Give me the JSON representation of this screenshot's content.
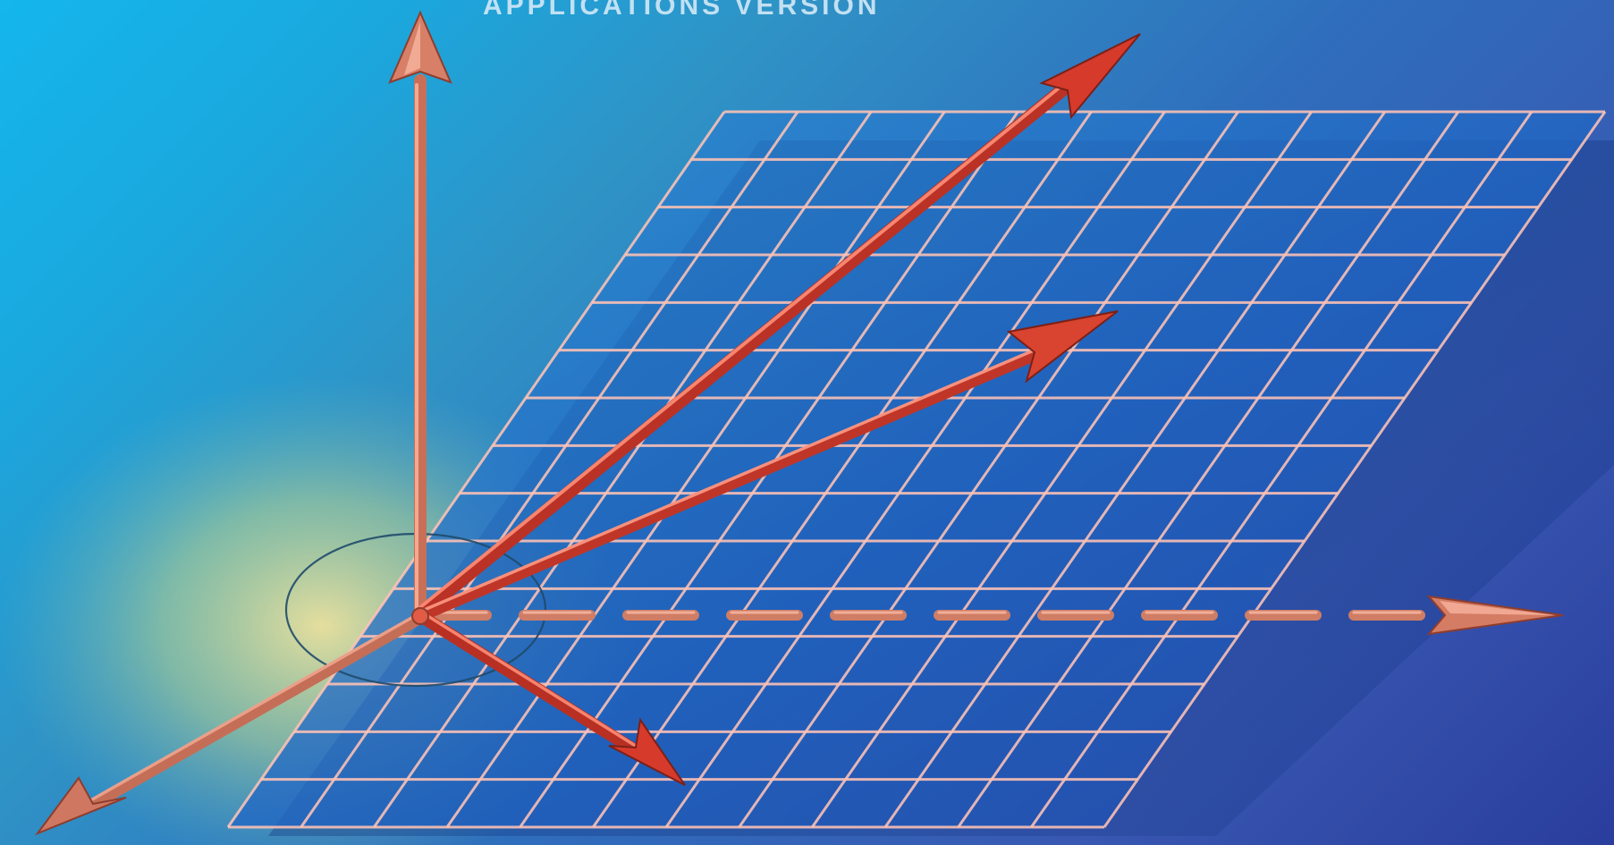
{
  "cover": {
    "title": "APPLICATIONS VERSION"
  },
  "palette": {
    "background_light": "#14b6ec",
    "background_dark": "#2a3d9d",
    "glow": "#e4e59b",
    "grid_line": "#ffc3b5",
    "grid_fill": "#1f63c2",
    "arrow_red": "#d8442f",
    "arrow_highlight": "#ff9a83",
    "axis_shaft": "#d9846b",
    "origin_circle": "#1f4a6c"
  },
  "icons": {
    "vertical_axis": "up-arrow-icon",
    "horizontal_axis": "right-arrow-icon",
    "depth_axis": "down-left-arrow-icon"
  }
}
